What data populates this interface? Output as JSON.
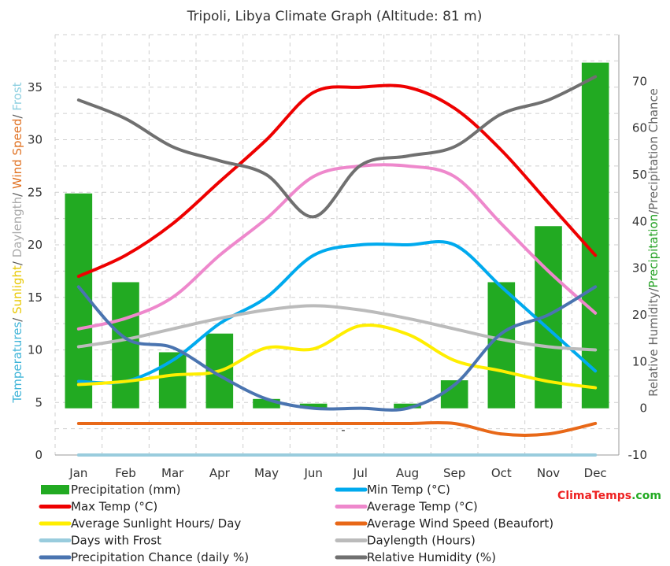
{
  "chart_data": {
    "type": "bar+line",
    "title": "Tripoli, Libya Climate Graph (Altitude: 81 m)",
    "categories": [
      "Jan",
      "Feb",
      "Mar",
      "Apr",
      "May",
      "Jun",
      "Jul",
      "Aug",
      "Sep",
      "Oct",
      "Nov",
      "Dec"
    ],
    "left_axis": {
      "label_parts": [
        {
          "text": "Temperatures",
          "color": "#3fb4d8"
        },
        {
          "text": "/ ",
          "color": "#555555"
        },
        {
          "text": "Sunlight",
          "color": "#e8c800"
        },
        {
          "text": "/ ",
          "color": "#555555"
        },
        {
          "text": "Daylength",
          "color": "#aaaaaa"
        },
        {
          "text": "/ ",
          "color": "#555555"
        },
        {
          "text": "Wind Speed",
          "color": "#e07020"
        },
        {
          "text": "/ ",
          "color": "#555555"
        },
        {
          "text": "Frost",
          "color": "#8ccfe0"
        }
      ],
      "range": [
        0,
        40
      ],
      "ticks": [
        "0",
        "5",
        "10",
        "15",
        "20",
        "25",
        "30",
        "35"
      ],
      "tick_values": [
        0,
        5,
        10,
        15,
        20,
        25,
        30,
        35
      ]
    },
    "right_axis": {
      "label_parts": [
        {
          "text": "Relative Humidity",
          "color": "#666666"
        },
        {
          "text": "/",
          "color": "#555555"
        },
        {
          "text": "Precipitation",
          "color": "#22a022"
        },
        {
          "text": "/",
          "color": "#555555"
        },
        {
          "text": "Precipitation Chance",
          "color": "#666666"
        }
      ],
      "range": [
        -10,
        80
      ],
      "ticks": [
        "-10",
        "0",
        "10",
        "20",
        "30",
        "40",
        "50",
        "60",
        "70"
      ],
      "tick_values": [
        -10,
        0,
        10,
        20,
        30,
        40,
        50,
        60,
        70
      ]
    },
    "series": [
      {
        "name": "Precipitation (mm)",
        "type": "bar",
        "axis": "right",
        "color": "#22aa22",
        "values": [
          46,
          27,
          12,
          16,
          2,
          1,
          0,
          1,
          6,
          27,
          39,
          74
        ]
      },
      {
        "name": "Min Temp (°C)",
        "type": "line",
        "axis": "left",
        "color": "#00aaee",
        "values": [
          7,
          7,
          9,
          12.5,
          15,
          19,
          20,
          20,
          20,
          16,
          12,
          8
        ]
      },
      {
        "name": "Max Temp (°C)",
        "type": "line",
        "axis": "left",
        "color": "#ee0000",
        "values": [
          17,
          19,
          22,
          26,
          30,
          34.5,
          35,
          35,
          33,
          29,
          24,
          19
        ]
      },
      {
        "name": "Average Temp (°C)",
        "type": "line",
        "axis": "left",
        "color": "#ee88cc",
        "values": [
          12,
          13,
          15,
          19,
          22.5,
          26.5,
          27.5,
          27.5,
          26.5,
          22,
          17.5,
          13.5
        ]
      },
      {
        "name": "Average Sunlight Hours/ Day",
        "type": "line",
        "axis": "left",
        "color": "#ffee00",
        "values": [
          6.7,
          7,
          7.6,
          8,
          10.2,
          10.1,
          12.3,
          11.5,
          9,
          8,
          7,
          6.4
        ]
      },
      {
        "name": "Average Wind Speed (Beaufort)",
        "type": "line",
        "axis": "left",
        "color": "#e86818",
        "values": [
          3,
          3,
          3,
          3,
          3,
          3,
          3,
          3,
          3,
          2,
          2,
          3
        ]
      },
      {
        "name": "Days with Frost",
        "type": "line",
        "axis": "left",
        "color": "#99ccdd",
        "values": [
          0,
          0,
          0,
          0,
          0,
          0,
          0,
          0,
          0,
          0,
          0,
          0
        ]
      },
      {
        "name": "Daylength (Hours)",
        "type": "line",
        "axis": "left",
        "color": "#bbbbbb",
        "values": [
          10.3,
          11,
          12,
          13,
          13.8,
          14.2,
          13.8,
          13,
          12,
          11,
          10.3,
          10
        ]
      },
      {
        "name": "Precipitation Chance (daily %)",
        "type": "line",
        "axis": "right",
        "color": "#4a74b0",
        "values": [
          26,
          15,
          13,
          7,
          2,
          0,
          0,
          0,
          5,
          16,
          20,
          26
        ]
      },
      {
        "name": "Relative Humidity (%)",
        "type": "line",
        "axis": "right",
        "color": "#707070",
        "values": [
          66,
          62,
          56,
          53,
          50,
          41,
          52,
          54,
          56,
          63,
          66,
          71
        ]
      }
    ],
    "legend_placement": "bottom",
    "grid": true
  },
  "brand": {
    "part1": "Clima",
    "part2": "Temps",
    "part3": ".com",
    "color1": "#ee2222",
    "color2": "#ee2222",
    "color3": "#22aa22"
  },
  "minus_marker": "-"
}
